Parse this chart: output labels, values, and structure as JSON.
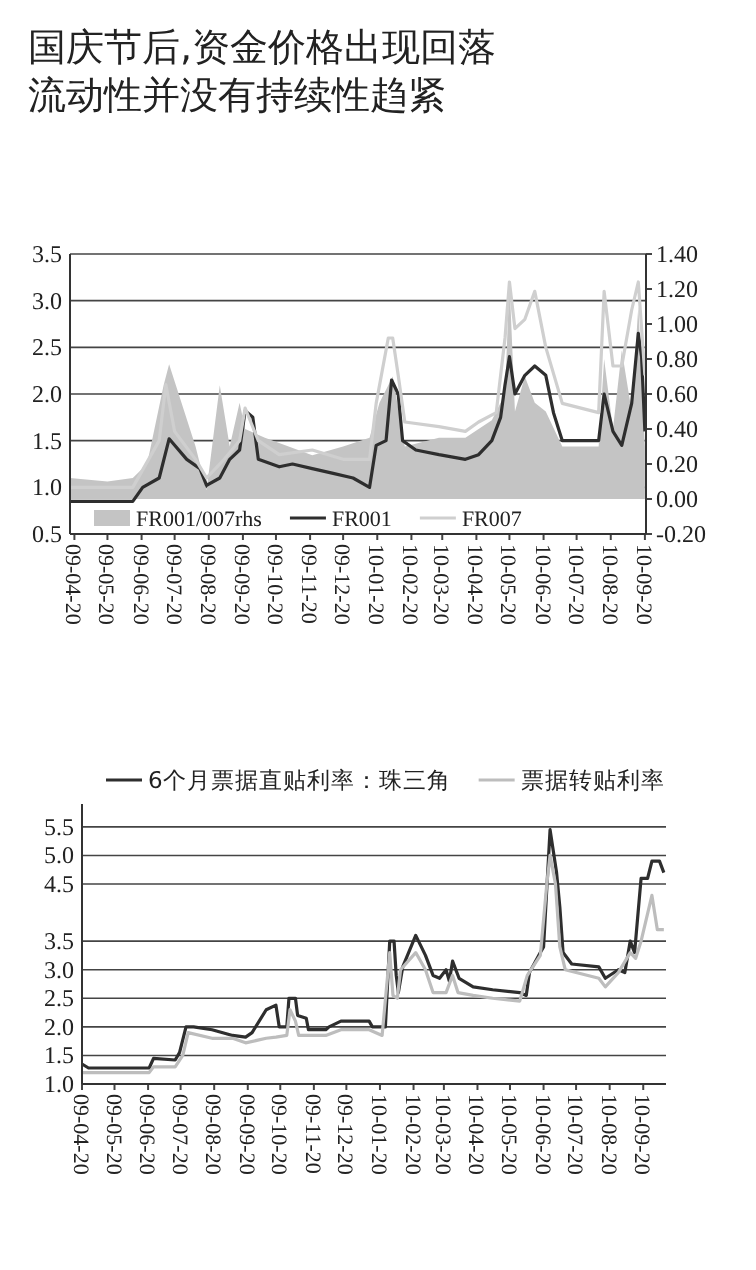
{
  "chart_data": [
    {
      "type": "line",
      "title": "国庆节后,资金价格出现回落",
      "subtitle": "流动性并没有持续性趋紧",
      "xlim": [
        "2009-04-16",
        "2010-09-21"
      ],
      "xticks": [
        {
          "value": "2009-04-20",
          "label": "09-04-20"
        },
        {
          "value": "2009-05-20",
          "label": "09-05-20"
        },
        {
          "value": "2009-06-20",
          "label": "09-06-20"
        },
        {
          "value": "2009-07-20",
          "label": "09-07-20"
        },
        {
          "value": "2009-08-20",
          "label": "09-08-20"
        },
        {
          "value": "2009-09-20",
          "label": "09-09-20"
        },
        {
          "value": "2009-10-20",
          "label": "09-10-20"
        },
        {
          "value": "2009-11-20",
          "label": "09-11-20"
        },
        {
          "value": "2009-12-20",
          "label": "09-12-20"
        },
        {
          "value": "2010-01-20",
          "label": "10-01-20"
        },
        {
          "value": "2010-02-20",
          "label": "10-02-20"
        },
        {
          "value": "2010-03-20",
          "label": "10-03-20"
        },
        {
          "value": "2010-04-20",
          "label": "10-04-20"
        },
        {
          "value": "2010-05-20",
          "label": "10-05-20"
        },
        {
          "value": "2010-06-20",
          "label": "10-06-20"
        },
        {
          "value": "2010-07-20",
          "label": "10-07-20"
        },
        {
          "value": "2010-08-20",
          "label": "10-08-20"
        },
        {
          "value": "2010-09-20",
          "label": "10-09-20"
        }
      ],
      "ylim": [
        0.5,
        3.5
      ],
      "yticks": [
        {
          "value": 0.5,
          "label": "0.5"
        },
        {
          "value": 1,
          "label": "1.0"
        },
        {
          "value": 1.5,
          "label": "1.5"
        },
        {
          "value": 2,
          "label": "2.0"
        },
        {
          "value": 2.5,
          "label": "2.5"
        },
        {
          "value": 3,
          "label": "3.0"
        },
        {
          "value": 3.5,
          "label": "3.5"
        }
      ],
      "y2lim": [
        -0.2,
        1.4
      ],
      "y2ticks": [
        {
          "value": -0.2,
          "label": "-0.20"
        },
        {
          "value": 0,
          "label": "0.00"
        },
        {
          "value": 0.2,
          "label": "0.20"
        },
        {
          "value": 0.4,
          "label": "0.40"
        },
        {
          "value": 0.6,
          "label": "0.60"
        },
        {
          "value": 0.8,
          "label": "0.80"
        },
        {
          "value": 1,
          "label": "1.00"
        },
        {
          "value": 1.2,
          "label": "1.20"
        },
        {
          "value": 1.4,
          "label": "1.40"
        }
      ],
      "grid": "y",
      "legend": "bottom",
      "series": [
        {
          "name": "FR001/007rhs",
          "type": "area",
          "axis": "y2",
          "color": "#c4c4c4",
          "x": [
            "2009-04-16",
            "2009-05-20",
            "2009-06-12",
            "2009-06-25",
            "2009-07-10",
            "2009-07-15",
            "2009-08-08",
            "2009-08-18",
            "2009-08-30",
            "2009-09-08",
            "2009-09-17",
            "2009-09-22",
            "2009-10-10",
            "2009-11-22",
            "2009-12-20",
            "2010-01-13",
            "2010-01-22",
            "2010-02-03",
            "2010-02-14",
            "2010-03-17",
            "2010-04-10",
            "2010-05-04",
            "2010-05-16",
            "2010-05-20",
            "2010-05-25",
            "2010-06-03",
            "2010-06-12",
            "2010-06-22",
            "2010-07-07",
            "2010-08-09",
            "2010-08-14",
            "2010-08-22",
            "2010-08-30",
            "2010-09-08",
            "2010-09-14",
            "2010-09-20"
          ],
          "values": [
            0.12,
            0.1,
            0.12,
            0.2,
            0.65,
            0.77,
            0.3,
            0.05,
            0.65,
            0.3,
            0.55,
            0.4,
            0.35,
            0.25,
            0.3,
            0.35,
            0.55,
            0.7,
            0.3,
            0.35,
            0.35,
            0.45,
            0.6,
            1.25,
            0.5,
            0.7,
            0.55,
            0.5,
            0.3,
            0.3,
            0.8,
            0.4,
            0.85,
            0.5,
            1.1,
            0.3
          ]
        },
        {
          "name": "FR001",
          "color": "#2e2e2e",
          "x": [
            "2009-04-16",
            "2009-06-12",
            "2009-06-21",
            "2009-07-06",
            "2009-07-15",
            "2009-07-31",
            "2009-08-12",
            "2009-08-18",
            "2009-08-30",
            "2009-09-08",
            "2009-09-17",
            "2009-09-22",
            "2009-09-29",
            "2009-10-04",
            "2009-10-23",
            "2009-11-04",
            "2009-11-22",
            "2009-12-11",
            "2009-12-29",
            "2010-01-13",
            "2010-01-19",
            "2010-01-28",
            "2010-02-02",
            "2010-02-08",
            "2010-02-12",
            "2010-02-24",
            "2010-03-17",
            "2010-04-10",
            "2010-04-22",
            "2010-05-04",
            "2010-05-12",
            "2010-05-16",
            "2010-05-20",
            "2010-05-25",
            "2010-06-03",
            "2010-06-12",
            "2010-06-22",
            "2010-06-29",
            "2010-07-07",
            "2010-08-09",
            "2010-08-14",
            "2010-08-22",
            "2010-08-30",
            "2010-09-08",
            "2010-09-14",
            "2010-09-17",
            "2010-09-20"
          ],
          "values": [
            0.85,
            0.85,
            1.0,
            1.1,
            1.52,
            1.3,
            1.2,
            1.02,
            1.1,
            1.3,
            1.4,
            1.82,
            1.75,
            1.3,
            1.22,
            1.25,
            1.2,
            1.15,
            1.1,
            1.0,
            1.45,
            1.5,
            2.15,
            2.0,
            1.5,
            1.4,
            1.35,
            1.3,
            1.35,
            1.5,
            1.75,
            2.1,
            2.4,
            2.0,
            2.2,
            2.3,
            2.2,
            1.8,
            1.5,
            1.5,
            2.0,
            1.6,
            1.45,
            1.9,
            2.65,
            2.4,
            1.6
          ]
        },
        {
          "name": "FR007",
          "color": "#cfcfcf",
          "x": [
            "2009-04-16",
            "2009-06-12",
            "2009-07-06",
            "2009-07-12",
            "2009-07-20",
            "2009-08-08",
            "2009-08-18",
            "2009-09-03",
            "2009-09-17",
            "2009-09-22",
            "2009-10-04",
            "2009-10-23",
            "2009-11-22",
            "2009-12-20",
            "2010-01-13",
            "2010-01-19",
            "2010-01-30",
            "2010-02-03",
            "2010-02-08",
            "2010-02-14",
            "2010-03-17",
            "2010-04-10",
            "2010-04-22",
            "2010-05-08",
            "2010-05-16",
            "2010-05-20",
            "2010-05-25",
            "2010-06-03",
            "2010-06-12",
            "2010-06-22",
            "2010-07-07",
            "2010-08-09",
            "2010-08-14",
            "2010-08-22",
            "2010-08-30",
            "2010-09-08",
            "2010-09-14",
            "2010-09-20"
          ],
          "values": [
            1.0,
            1.0,
            1.5,
            2.1,
            1.6,
            1.3,
            1.1,
            1.3,
            1.5,
            1.85,
            1.5,
            1.35,
            1.4,
            1.3,
            1.3,
            1.9,
            2.6,
            2.6,
            2.2,
            1.7,
            1.65,
            1.6,
            1.7,
            1.8,
            2.6,
            3.2,
            2.7,
            2.8,
            3.1,
            2.5,
            1.9,
            1.8,
            3.1,
            2.3,
            2.3,
            2.9,
            3.2,
            2.2
          ]
        }
      ]
    },
    {
      "type": "line",
      "xlim": [
        "2009-04-20",
        "2010-10-11"
      ],
      "xticks": [
        {
          "value": "2009-04-20",
          "label": "09-04-20"
        },
        {
          "value": "2009-05-20",
          "label": "09-05-20"
        },
        {
          "value": "2009-06-20",
          "label": "09-06-20"
        },
        {
          "value": "2009-07-20",
          "label": "09-07-20"
        },
        {
          "value": "2009-08-20",
          "label": "09-08-20"
        },
        {
          "value": "2009-09-20",
          "label": "09-09-20"
        },
        {
          "value": "2009-10-20",
          "label": "09-10-20"
        },
        {
          "value": "2009-11-20",
          "label": "09-11-20"
        },
        {
          "value": "2009-12-20",
          "label": "09-12-20"
        },
        {
          "value": "2010-01-20",
          "label": "10-01-20"
        },
        {
          "value": "2010-02-20",
          "label": "10-02-20"
        },
        {
          "value": "2010-03-20",
          "label": "10-03-20"
        },
        {
          "value": "2010-04-20",
          "label": "10-04-20"
        },
        {
          "value": "2010-05-20",
          "label": "10-05-20"
        },
        {
          "value": "2010-06-20",
          "label": "10-06-20"
        },
        {
          "value": "2010-07-20",
          "label": "10-07-20"
        },
        {
          "value": "2010-08-20",
          "label": "10-08-20"
        },
        {
          "value": "2010-09-20",
          "label": "10-09-20"
        }
      ],
      "ylim": [
        1.0,
        5.9
      ],
      "yticks": [
        {
          "value": 1,
          "label": "1.0"
        },
        {
          "value": 1.5,
          "label": "1.5"
        },
        {
          "value": 2,
          "label": "2.0"
        },
        {
          "value": 2.5,
          "label": "2.5"
        },
        {
          "value": 3,
          "label": "3.0"
        },
        {
          "value": 3.5,
          "label": "3.5"
        },
        {
          "value": 4.5,
          "label": "4.5"
        },
        {
          "value": 5,
          "label": "5.0"
        },
        {
          "value": 5.5,
          "label": "5.5"
        }
      ],
      "grid": "y",
      "legend": "top",
      "series": [
        {
          "name": "6个月票据直贴利率：珠三角",
          "color": "#2e2e2e",
          "x": [
            "2009-04-20",
            "2009-04-26",
            "2009-06-21",
            "2009-06-25",
            "2009-07-15",
            "2009-07-19",
            "2009-07-25",
            "2009-08-01",
            "2009-08-18",
            "2009-09-06",
            "2009-09-18",
            "2009-09-24",
            "2009-10-07",
            "2009-10-16",
            "2009-10-19",
            "2009-10-26",
            "2009-10-28",
            "2009-11-03",
            "2009-11-05",
            "2009-11-13",
            "2009-11-15",
            "2009-12-01",
            "2009-12-04",
            "2009-12-15",
            "2010-01-10",
            "2010-01-13",
            "2010-01-25",
            "2010-01-29",
            "2010-02-02",
            "2010-02-04",
            "2010-02-06",
            "2010-02-10",
            "2010-02-22",
            "2010-03-03",
            "2010-03-10",
            "2010-03-16",
            "2010-03-22",
            "2010-03-25",
            "2010-03-28",
            "2010-04-03",
            "2010-04-16",
            "2010-05-04",
            "2010-05-29",
            "2010-06-04",
            "2010-06-07",
            "2010-06-17",
            "2010-06-20",
            "2010-06-26",
            "2010-07-02",
            "2010-07-05",
            "2010-07-08",
            "2010-07-16",
            "2010-08-10",
            "2010-08-16",
            "2010-08-28",
            "2010-09-03",
            "2010-09-08",
            "2010-09-12",
            "2010-09-18",
            "2010-09-24",
            "2010-09-28",
            "2010-10-05",
            "2010-10-09"
          ],
          "values": [
            1.35,
            1.28,
            1.28,
            1.45,
            1.42,
            1.55,
            2.0,
            2.0,
            1.95,
            1.85,
            1.82,
            1.9,
            2.3,
            2.38,
            2.0,
            2.0,
            2.5,
            2.5,
            2.2,
            2.15,
            1.95,
            1.95,
            2.0,
            2.1,
            2.1,
            2.0,
            2.0,
            3.5,
            3.5,
            2.9,
            2.6,
            3.05,
            3.6,
            3.25,
            2.9,
            2.85,
            3.0,
            2.8,
            3.15,
            2.85,
            2.7,
            2.65,
            2.6,
            2.55,
            2.95,
            3.3,
            3.4,
            5.45,
            4.7,
            4.1,
            3.3,
            3.1,
            3.05,
            2.85,
            3.0,
            2.95,
            3.5,
            3.3,
            4.6,
            4.6,
            4.9,
            4.9,
            4.7
          ]
        },
        {
          "name": "票据转贴利率",
          "color": "#bdbdbd",
          "x": [
            "2009-04-20",
            "2009-06-21",
            "2009-06-25",
            "2009-07-15",
            "2009-07-22",
            "2009-07-27",
            "2009-08-18",
            "2009-09-06",
            "2009-09-18",
            "2009-10-07",
            "2009-10-16",
            "2009-10-26",
            "2009-10-29",
            "2009-11-03",
            "2009-11-06",
            "2009-12-01",
            "2009-12-15",
            "2010-01-10",
            "2010-01-22",
            "2010-01-29",
            "2010-02-01",
            "2010-02-05",
            "2010-02-08",
            "2010-02-22",
            "2010-03-03",
            "2010-03-10",
            "2010-03-22",
            "2010-03-28",
            "2010-04-02",
            "2010-04-16",
            "2010-05-04",
            "2010-05-29",
            "2010-06-05",
            "2010-06-17",
            "2010-06-23",
            "2010-06-26",
            "2010-07-01",
            "2010-07-05",
            "2010-07-10",
            "2010-08-10",
            "2010-08-16",
            "2010-08-28",
            "2010-09-08",
            "2010-09-13",
            "2010-09-18",
            "2010-09-28",
            "2010-10-03",
            "2010-10-09"
          ],
          "values": [
            1.2,
            1.2,
            1.3,
            1.3,
            1.5,
            1.9,
            1.8,
            1.8,
            1.72,
            1.8,
            1.82,
            1.85,
            2.3,
            2.1,
            1.85,
            1.85,
            1.95,
            1.95,
            1.85,
            3.3,
            2.55,
            2.5,
            3.0,
            3.3,
            3.0,
            2.6,
            2.6,
            2.9,
            2.6,
            2.55,
            2.5,
            2.45,
            2.9,
            3.25,
            4.5,
            5.0,
            4.5,
            3.4,
            3.0,
            2.85,
            2.7,
            2.95,
            3.3,
            3.2,
            3.5,
            4.3,
            3.7,
            3.7
          ]
        }
      ]
    }
  ]
}
